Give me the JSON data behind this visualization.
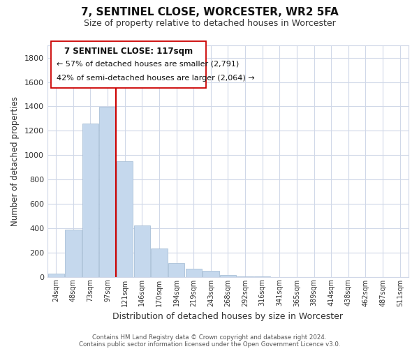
{
  "title": "7, SENTINEL CLOSE, WORCESTER, WR2 5FA",
  "subtitle": "Size of property relative to detached houses in Worcester",
  "xlabel": "Distribution of detached houses by size in Worcester",
  "ylabel": "Number of detached properties",
  "footnote1": "Contains HM Land Registry data © Crown copyright and database right 2024.",
  "footnote2": "Contains public sector information licensed under the Open Government Licence v3.0.",
  "bar_labels": [
    "24sqm",
    "48sqm",
    "73sqm",
    "97sqm",
    "121sqm",
    "146sqm",
    "170sqm",
    "194sqm",
    "219sqm",
    "243sqm",
    "268sqm",
    "292sqm",
    "316sqm",
    "341sqm",
    "365sqm",
    "389sqm",
    "414sqm",
    "438sqm",
    "462sqm",
    "487sqm",
    "511sqm"
  ],
  "bar_values": [
    25,
    385,
    1260,
    1395,
    950,
    420,
    235,
    110,
    68,
    50,
    12,
    5,
    2,
    0,
    0,
    0,
    0,
    0,
    0,
    0,
    0
  ],
  "bar_color": "#c5d8ed",
  "bar_edge_color": "#aac0d8",
  "marker_index": 3,
  "marker_color": "#cc0000",
  "ylim": [
    0,
    1900
  ],
  "yticks": [
    0,
    200,
    400,
    600,
    800,
    1000,
    1200,
    1400,
    1600,
    1800
  ],
  "annotation_title": "7 SENTINEL CLOSE: 117sqm",
  "annotation_line1": "← 57% of detached houses are smaller (2,791)",
  "annotation_line2": "42% of semi-detached houses are larger (2,064) →",
  "background_color": "#ffffff",
  "grid_color": "#d0d8e8"
}
